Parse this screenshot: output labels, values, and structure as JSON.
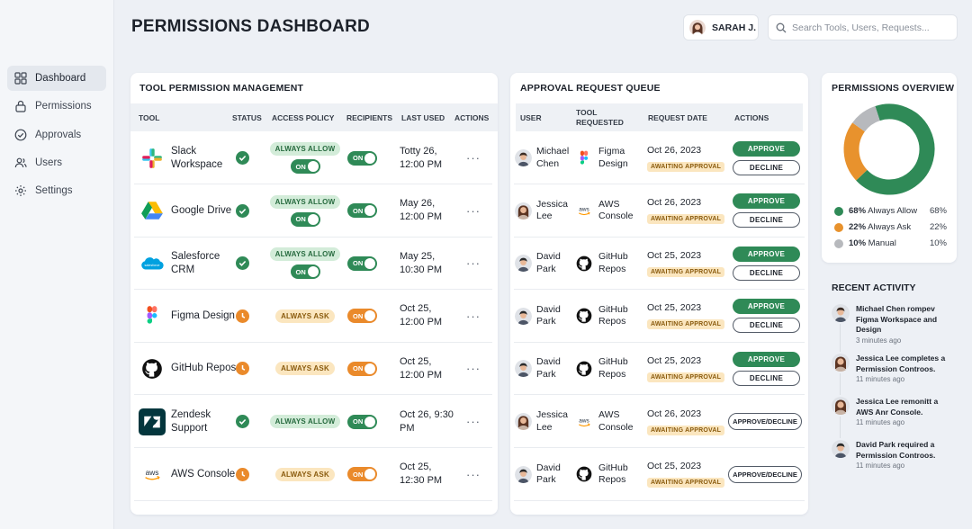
{
  "header": {
    "title": "PERMISSIONS DASHBOARD",
    "user_name": "SARAH J.",
    "search_placeholder": "Search Tools, Users, Requests..."
  },
  "sidebar": {
    "items": [
      {
        "label": "Dashboard",
        "icon": "grid-icon",
        "active": true
      },
      {
        "label": "Permissions",
        "icon": "lock-icon",
        "active": false
      },
      {
        "label": "Approvals",
        "icon": "check-circle-icon",
        "active": false
      },
      {
        "label": "Users",
        "icon": "users-icon",
        "active": false
      },
      {
        "label": "Settings",
        "icon": "gear-icon",
        "active": false
      }
    ]
  },
  "tools_card": {
    "title": "TOOL PERMISSION MANAGEMENT",
    "columns": [
      "TOOL",
      "STATUS",
      "ACCESS POLICY",
      "RECIPIENTS",
      "LAST USED",
      "ACTIONS"
    ],
    "rows": [
      {
        "name": "Slack Workspace",
        "logo": "slack-logo-icon",
        "status": "check",
        "policy": "ALWAYS ALLOW",
        "policy_toggle": "ON",
        "recipients": "ON",
        "last_used": "Totty 26, 12:00 PM",
        "actions": "···"
      },
      {
        "name": "Google Drive",
        "logo": "google-drive-logo-icon",
        "status": "check",
        "policy": "ALWAYS ALLOW",
        "policy_toggle": "ON",
        "recipients": "ON",
        "last_used": "May 26, 12:00 PM",
        "actions": "···"
      },
      {
        "name": "Salesforce CRM",
        "logo": "salesforce-logo-icon",
        "status": "check",
        "policy": "ALWAYS ALLOW",
        "policy_toggle": "ON",
        "recipients": "ON",
        "last_used": "May 25, 10:30 PM",
        "actions": "···"
      },
      {
        "name": "Figma Design",
        "logo": "figma-logo-icon",
        "status": "clock",
        "policy": "ALWAYS ASK",
        "policy_toggle": "",
        "recipients": "ON",
        "last_used": "Oct 25, 12:00 PM",
        "actions": "···"
      },
      {
        "name": "GitHub Repos",
        "logo": "github-logo-icon",
        "status": "clock",
        "policy": "ALWAYS ASK",
        "policy_toggle": "",
        "recipients": "ON",
        "last_used": "Oct 25, 12:00 PM",
        "actions": "···"
      },
      {
        "name": "Zendesk Support",
        "logo": "zendesk-logo-icon",
        "status": "check",
        "policy": "ALWAYS ALLOW",
        "policy_toggle": "",
        "recipients": "ON",
        "last_used": "Oct 26, 9:30 PM",
        "actions": "···"
      },
      {
        "name": "AWS Console",
        "logo": "aws-logo-icon",
        "status": "clock",
        "policy": "ALWAYS ASK",
        "policy_toggle": "",
        "recipients": "ON",
        "last_used": "Oct 25, 12:30 PM",
        "actions": "···"
      }
    ]
  },
  "queue_card": {
    "title": "APPROVAL REQUEST QUEUE",
    "columns": [
      "USER",
      "TOOL REQUESTED",
      "REQUEST DATE",
      "ACTIONS"
    ],
    "rows": [
      {
        "user": "Michael Chen",
        "avatar": "male",
        "tool": "Figma Design",
        "logo": "figma-logo-icon",
        "date": "Oct 26, 2023",
        "badge": "AWAITING APPROVAL",
        "mode": "split",
        "approve": "APPROVE",
        "decline": "DECLINE"
      },
      {
        "user": "Jessica Lee",
        "avatar": "female",
        "tool": "AWS Console",
        "logo": "aws-logo-icon",
        "date": "Oct 26, 2023",
        "badge": "AWAITING APPROVAL",
        "mode": "split",
        "approve": "APPROVE",
        "decline": "DECLINE"
      },
      {
        "user": "David Park",
        "avatar": "male2",
        "tool": "GitHub Repos",
        "logo": "github-logo-icon",
        "date": "Oct 25, 2023",
        "badge": "AWAITING APPROVAL",
        "mode": "split",
        "approve": "APPROVE",
        "decline": "DECLINE"
      },
      {
        "user": "David Park",
        "avatar": "male2",
        "tool": "GitHub Repos",
        "logo": "github-logo-icon",
        "date": "Oct 25, 2023",
        "badge": "AWAITING APPROVAL",
        "mode": "split",
        "approve": "APPROVE",
        "decline": "DECLINE"
      },
      {
        "user": "David Park",
        "avatar": "male2",
        "tool": "GitHub Repos",
        "logo": "github-logo-icon",
        "date": "Oct 25, 2023",
        "badge": "AWAITING APPROVAL",
        "mode": "split",
        "approve": "APPROVE",
        "decline": "DECLINE"
      },
      {
        "user": "Jessica Lee",
        "avatar": "female",
        "tool": "AWS Console",
        "logo": "aws-logo-icon",
        "date": "Oct 26, 2023",
        "badge": "AWAITING APPROVAL",
        "mode": "single",
        "both": "APPROVE/DECLINE"
      },
      {
        "user": "David Park",
        "avatar": "male2",
        "tool": "GitHub Repos",
        "logo": "github-logo-icon",
        "date": "Oct 25, 2023",
        "badge": "AWAITING APPROVAL",
        "mode": "single",
        "both": "APPROVE/DECLINE"
      }
    ]
  },
  "overview_card": {
    "title": "PERMISSIONS OVERVIEW",
    "chart_data": {
      "type": "pie",
      "categories": [
        "Always Allow",
        "Always Ask",
        "Manual"
      ],
      "values": [
        68,
        22,
        10
      ],
      "legend_labels": [
        "68% Always Allow",
        "22% Always Ask",
        "10% Manual"
      ],
      "legend_bold": [
        "68%",
        "22%",
        "10%"
      ],
      "legend_text": [
        "Always Allow",
        "Always Ask",
        "Manual"
      ],
      "legend_pct": [
        "68%",
        "22%",
        "10%"
      ],
      "colors": [
        "#2f8a57",
        "#e8922d",
        "#b7b9bd"
      ]
    }
  },
  "activity": {
    "title": "RECENT ACTIVITY",
    "items": [
      {
        "text": "Michael Chen rompev Figma Workspace and Design",
        "time": "3 minutes ago",
        "avatar": "male"
      },
      {
        "text": "Jessica Lee completes a Permission Controos.",
        "time": "11 minutes ago",
        "avatar": "female"
      },
      {
        "text": "Jessica Lee remonitt a AWS Anr Console.",
        "time": "11 minutes ago",
        "avatar": "female"
      },
      {
        "text": "David Park required a Permission Controos.",
        "time": "11 minutes ago",
        "avatar": "male2"
      }
    ]
  },
  "colors": {
    "green": "#2f8a57",
    "orange": "#ea8a2b",
    "background": "#edf0f5"
  }
}
